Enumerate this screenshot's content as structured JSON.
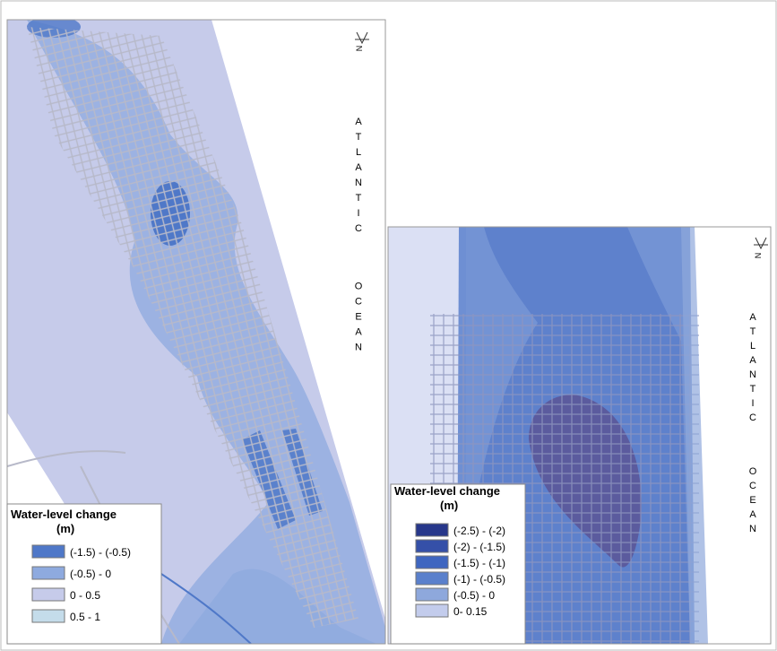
{
  "maps": [
    {
      "north_label": "N",
      "ocean_label": [
        "ATLANTIC",
        "OCEAN"
      ],
      "legend": {
        "title": [
          "Water-level change",
          "(m)"
        ],
        "entries": [
          {
            "label": "(-1.5) - (-0.5)",
            "color": "#4f78c8"
          },
          {
            "label": "(-0.5) - 0",
            "color": "#8eaadf"
          },
          {
            "label": "0 - 0.5",
            "color": "#c6cbea"
          },
          {
            "label": "0.5 - 1",
            "color": "#c4dcea"
          }
        ]
      }
    },
    {
      "north_label": "N",
      "ocean_label": [
        "ATLANTIC",
        "OCEAN"
      ],
      "legend": {
        "title": [
          "Water-level change",
          "(m)"
        ],
        "entries": [
          {
            "label": "(-2.5) - (-2)",
            "color": "#27378a"
          },
          {
            "label": "(-2) - (-1.5)",
            "color": "#3550a8"
          },
          {
            "label": "(-1.5) - (-1)",
            "color": "#3f66c0"
          },
          {
            "label": "(-1) - (-0.5)",
            "color": "#5a80cc"
          },
          {
            "label": "(-0.5) - 0",
            "color": "#8ea8dc"
          },
          {
            "label": "0- 0.15",
            "color": "#c3ccec"
          }
        ]
      }
    }
  ]
}
